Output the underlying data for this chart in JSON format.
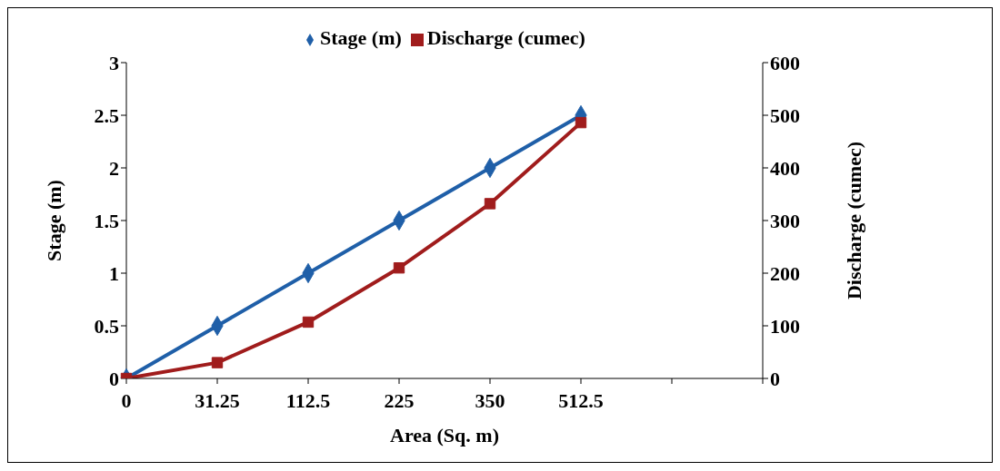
{
  "chart_data": {
    "type": "line",
    "xlabel": "Area (Sq. m)",
    "ylabel": "Stage (m)",
    "y2label": "Discharge (cumec)",
    "categories": [
      "0",
      "31.25",
      "112.5",
      "225",
      "350",
      "512.5",
      null,
      null
    ],
    "series": [
      {
        "name": "Stage (m)",
        "color": "#1f5fa8",
        "marker": "diamond",
        "values": [
          0,
          0.5,
          1,
          1.5,
          2,
          2.5,
          null,
          null
        ]
      },
      {
        "name": "Discharge (cumec)",
        "color": "#a01c1c",
        "marker": "square",
        "axis": "y2",
        "values": [
          0,
          30,
          107,
          210,
          332,
          486,
          null,
          null
        ]
      }
    ],
    "ylim": [
      0,
      3
    ],
    "yticks": [
      0,
      0.5,
      1,
      1.5,
      2,
      2.5,
      3
    ],
    "y2lim": [
      0,
      600
    ],
    "y2ticks": [
      0,
      100,
      200,
      300,
      400,
      500,
      600
    ],
    "grid": false,
    "legend": "top"
  }
}
